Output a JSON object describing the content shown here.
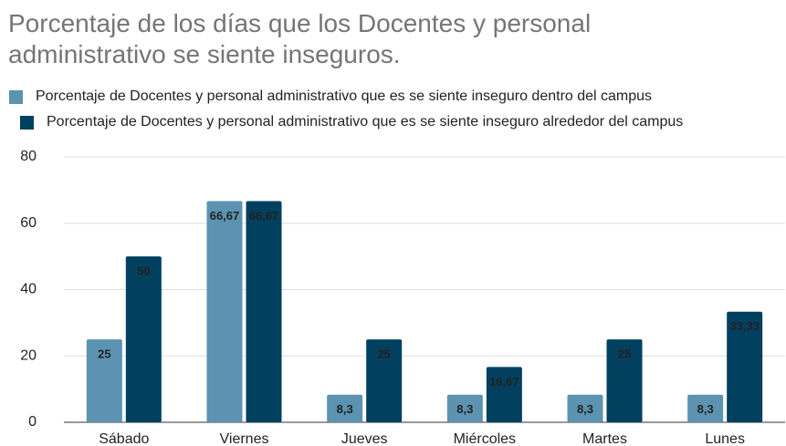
{
  "chart_data": {
    "type": "bar",
    "title": "Porcentaje de los días que los Docentes y personal administrativo se siente inseguros.",
    "categories": [
      "Sábado",
      "Viernes",
      "Jueves",
      "Miércoles",
      "Martes",
      "Lunes"
    ],
    "series": [
      {
        "name": "Porcentaje de Docentes y personal administrativo que es se siente inseguro dentro del campus",
        "color": "#5b93b1",
        "values": [
          25,
          66.67,
          8.3,
          8.3,
          8.3,
          8.3
        ],
        "value_labels": [
          "25",
          "66,67",
          "8,3",
          "8,3",
          "8,3",
          "8,3"
        ]
      },
      {
        "name": "Porcentaje de Docentes y personal administrativo que es se siente inseguro alrededor del campus",
        "color": "#01405f",
        "values": [
          50,
          66.67,
          25,
          16.67,
          25,
          33.33
        ],
        "value_labels": [
          "50",
          "66,67",
          "25",
          "16,67",
          "25",
          "33,33"
        ]
      }
    ],
    "ylim": [
      0,
      80
    ],
    "yticks": [
      0,
      20,
      40,
      60,
      80
    ],
    "grid": true
  }
}
